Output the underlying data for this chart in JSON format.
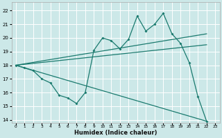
{
  "xlabel": "Humidex (Indice chaleur)",
  "bg_color": "#cce8e8",
  "grid_color": "#ffffff",
  "line_color": "#1a7a6e",
  "xlim": [
    -0.5,
    23.5
  ],
  "ylim": [
    13.8,
    22.6
  ],
  "yticks": [
    14,
    15,
    16,
    17,
    18,
    19,
    20,
    21,
    22
  ],
  "xticks": [
    0,
    1,
    2,
    3,
    4,
    5,
    6,
    7,
    8,
    9,
    10,
    11,
    12,
    13,
    14,
    15,
    16,
    17,
    18,
    19,
    20,
    21,
    22,
    23
  ],
  "series1_x": [
    0,
    1,
    2,
    3,
    4,
    5,
    6,
    7,
    8,
    9,
    10,
    11,
    12,
    13,
    14,
    15,
    16,
    17,
    18,
    19,
    20,
    21,
    22
  ],
  "series1_y": [
    18.0,
    17.8,
    17.6,
    17.0,
    16.7,
    15.8,
    15.6,
    15.2,
    16.0,
    19.1,
    20.0,
    19.8,
    19.2,
    19.9,
    21.6,
    20.5,
    21.0,
    21.8,
    20.3,
    19.6,
    18.2,
    15.7,
    13.9
  ],
  "series2_x": [
    0,
    22
  ],
  "series2_y": [
    18.0,
    13.9
  ],
  "series3_x": [
    0,
    22
  ],
  "series3_y": [
    18.0,
    20.3
  ],
  "series4_x": [
    0,
    22
  ],
  "series4_y": [
    18.0,
    19.5
  ]
}
